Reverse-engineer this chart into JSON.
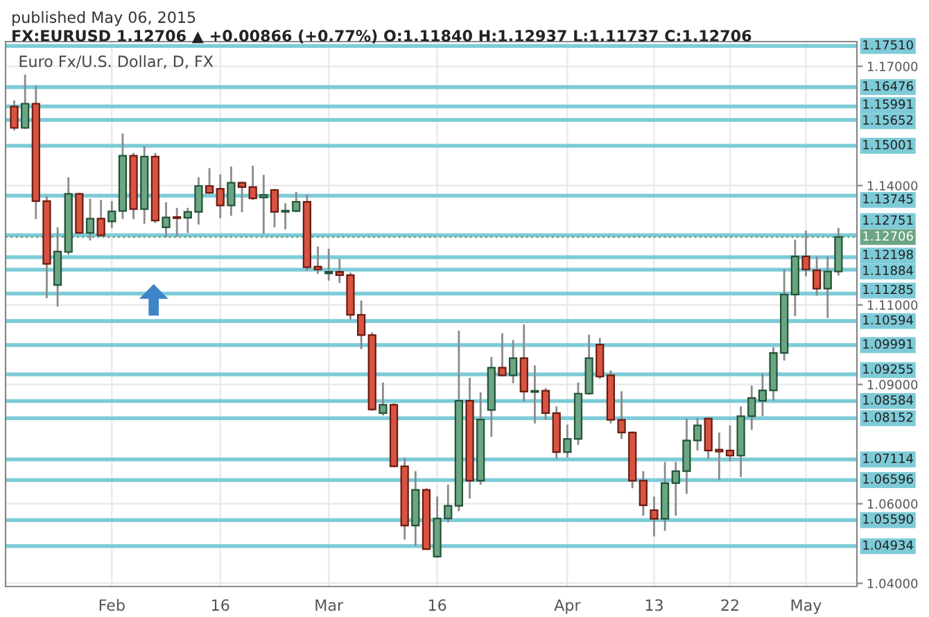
{
  "chart_data": {
    "type": "candlestick",
    "title": "FX:EURUSD 1.12706 ▲ +0.00866 (+0.77%) O:1.11840 H:1.12937 L:1.11737 C:1.12706",
    "subtitle": "published May 06, 2015",
    "annotations": [
      "Euro Fx/U.S. Dollar, D, FX"
    ],
    "categories": [
      null,
      null,
      null,
      null,
      null,
      null,
      null,
      null,
      null,
      "Feb",
      null,
      null,
      null,
      null,
      null,
      null,
      null,
      null,
      null,
      "16",
      null,
      null,
      null,
      null,
      null,
      null,
      null,
      null,
      null,
      "Mar",
      null,
      null,
      null,
      null,
      null,
      null,
      null,
      null,
      null,
      "16",
      null,
      null,
      null,
      null,
      null,
      null,
      null,
      null,
      null,
      null,
      null,
      "Apr",
      null,
      null,
      null,
      null,
      null,
      null,
      null,
      "13",
      null,
      null,
      null,
      null,
      null,
      null,
      "22",
      null,
      null,
      null,
      null,
      null,
      null,
      "May",
      null,
      null,
      null
    ],
    "ohlc": [
      [
        1.1599,
        1.1614,
        1.1539,
        1.1545
      ],
      [
        1.1545,
        1.1679,
        1.1542,
        1.1606
      ],
      [
        1.1606,
        1.1651,
        1.1316,
        1.1361
      ],
      [
        1.1361,
        1.1373,
        1.1117,
        1.1203
      ],
      [
        1.115,
        1.1295,
        1.1096,
        1.1234
      ],
      [
        1.1233,
        1.1421,
        1.1226,
        1.1379
      ],
      [
        1.1379,
        1.1382,
        1.1279,
        1.1281
      ],
      [
        1.1281,
        1.1367,
        1.1262,
        1.1317
      ],
      [
        1.1317,
        1.1364,
        1.1272,
        1.1275
      ],
      [
        1.131,
        1.1361,
        1.1293,
        1.1335
      ],
      [
        1.1336,
        1.1531,
        1.1316,
        1.1475
      ],
      [
        1.1475,
        1.1482,
        1.1316,
        1.1341
      ],
      [
        1.1341,
        1.1499,
        1.1304,
        1.1473
      ],
      [
        1.1473,
        1.1482,
        1.1306,
        1.1312
      ],
      [
        1.1295,
        1.1358,
        1.127,
        1.132
      ],
      [
        1.1321,
        1.1344,
        1.1272,
        1.1318
      ],
      [
        1.1319,
        1.1344,
        1.1281,
        1.1334
      ],
      [
        1.1334,
        1.1421,
        1.1302,
        1.1399
      ],
      [
        1.1399,
        1.1444,
        1.1379,
        1.1382
      ],
      [
        1.1392,
        1.1428,
        1.1318,
        1.135
      ],
      [
        1.135,
        1.1448,
        1.1324,
        1.1407
      ],
      [
        1.1407,
        1.141,
        1.1333,
        1.1396
      ],
      [
        1.1396,
        1.145,
        1.1364,
        1.1368
      ],
      [
        1.137,
        1.1427,
        1.1279,
        1.1376
      ],
      [
        1.1389,
        1.1392,
        1.1295,
        1.1334
      ],
      [
        1.1334,
        1.1356,
        1.129,
        1.1337
      ],
      [
        1.1336,
        1.1384,
        1.1333,
        1.1359
      ],
      [
        1.1359,
        1.1378,
        1.1186,
        1.1195
      ],
      [
        1.1196,
        1.1247,
        1.1178,
        1.1189
      ],
      [
        1.1179,
        1.1241,
        1.1161,
        1.1183
      ],
      [
        1.1183,
        1.1216,
        1.1155,
        1.1175
      ],
      [
        1.1175,
        1.1181,
        1.1063,
        1.1075
      ],
      [
        1.1075,
        1.1111,
        1.0989,
        1.1024
      ],
      [
        1.1024,
        1.1031,
        1.0834,
        1.0837
      ],
      [
        1.0828,
        1.0905,
        1.0822,
        1.0849
      ],
      [
        1.0849,
        1.0853,
        1.0692,
        1.0694
      ],
      [
        1.0694,
        1.0716,
        1.051,
        1.0545
      ],
      [
        1.0545,
        1.0682,
        1.0494,
        1.0635
      ],
      [
        1.0635,
        1.0639,
        1.0484,
        1.0486
      ],
      [
        1.0467,
        1.0618,
        1.0464,
        1.0563
      ],
      [
        1.0563,
        1.0648,
        1.0553,
        1.0595
      ],
      [
        1.0595,
        1.1035,
        1.0581,
        1.0859
      ],
      [
        1.0859,
        1.0917,
        1.0613,
        1.0658
      ],
      [
        1.0658,
        1.088,
        1.0648,
        1.0812
      ],
      [
        1.0836,
        1.0969,
        1.0768,
        1.0942
      ],
      [
        1.0942,
        1.1029,
        1.092,
        1.0923
      ],
      [
        1.0923,
        1.1012,
        1.0903,
        1.0966
      ],
      [
        1.0966,
        1.1051,
        1.0857,
        1.0882
      ],
      [
        1.0881,
        1.0948,
        1.0802,
        1.0884
      ],
      [
        1.0884,
        1.0891,
        1.0811,
        1.0828
      ],
      [
        1.0828,
        1.0845,
        1.0713,
        1.073
      ],
      [
        1.073,
        1.0799,
        1.0716,
        1.0763
      ],
      [
        1.0763,
        1.0905,
        1.0748,
        1.0877
      ],
      [
        1.0877,
        1.1025,
        1.0874,
        1.0966
      ],
      [
        1.1,
        1.1017,
        1.0914,
        1.092
      ],
      [
        1.0923,
        1.0935,
        1.0802,
        1.0811
      ],
      [
        1.0811,
        1.0883,
        1.0763,
        1.0779
      ],
      [
        1.0779,
        1.0782,
        1.0639,
        1.0658
      ],
      [
        1.0658,
        1.0682,
        1.057,
        1.0596
      ],
      [
        1.0584,
        1.0618,
        1.0518,
        1.0562
      ],
      [
        1.0562,
        1.0705,
        1.0532,
        1.0652
      ],
      [
        1.0652,
        1.0705,
        1.057,
        1.0682
      ],
      [
        1.0682,
        1.0814,
        1.0625,
        1.0759
      ],
      [
        1.0759,
        1.0816,
        1.0734,
        1.0797
      ],
      [
        1.0814,
        1.0816,
        1.0713,
        1.0734
      ],
      [
        1.0736,
        1.0779,
        1.0659,
        1.0731
      ],
      [
        1.0734,
        1.0797,
        1.0707,
        1.0721
      ],
      [
        1.0721,
        1.0845,
        1.0667,
        1.082
      ],
      [
        1.082,
        1.0897,
        1.0786,
        1.0866
      ],
      [
        1.0859,
        1.0928,
        1.082,
        1.0885
      ],
      [
        1.0885,
        1.0994,
        1.0859,
        1.0979
      ],
      [
        1.0979,
        1.1189,
        1.096,
        1.1126
      ],
      [
        1.1126,
        1.1264,
        1.1072,
        1.1222
      ],
      [
        1.1222,
        1.1287,
        1.1172,
        1.1189
      ],
      [
        1.1187,
        1.1222,
        1.1123,
        1.1141
      ],
      [
        1.1141,
        1.1222,
        1.1067,
        1.1184
      ],
      [
        1.1184,
        1.12937,
        1.11737,
        1.12706
      ]
    ],
    "ylim": [
      1.0392,
      1.1762
    ],
    "yticks": [
      {
        "value": 1.17,
        "label": "1.17000"
      },
      {
        "value": 1.14,
        "label": "1.14000"
      },
      {
        "value": 1.11,
        "label": "1.11000"
      },
      {
        "value": 1.09,
        "label": "1.09000"
      },
      {
        "value": 1.06,
        "label": "1.06000"
      },
      {
        "value": 1.04,
        "label": "1.04000"
      }
    ],
    "ref_lines": [
      {
        "axis": "y",
        "value": 1.1751,
        "label": "1.17510",
        "color": "#7ecbd8"
      },
      {
        "axis": "y",
        "value": 1.16476,
        "label": "1.16476",
        "color": "#7ecbd8"
      },
      {
        "axis": "y",
        "value": 1.15991,
        "label": "1.15991",
        "color": "#7ecbd8"
      },
      {
        "axis": "y",
        "value": 1.15652,
        "label": "1.15652",
        "color": "#7ecbd8"
      },
      {
        "axis": "y",
        "value": 1.15001,
        "label": "1.15001",
        "color": "#7ecbd8"
      },
      {
        "axis": "y",
        "value": 1.13745,
        "label": "1.13745",
        "color": "#7ecbd8"
      },
      {
        "axis": "y",
        "value": 1.12751,
        "label": "1.12751",
        "color": "#7ecbd8"
      },
      {
        "axis": "y",
        "value": 1.12706,
        "label": "1.12706",
        "color": "#6ba583",
        "line_style": "dotted"
      },
      {
        "axis": "y",
        "value": 1.12198,
        "label": "1.12198",
        "color": "#7ecbd8"
      },
      {
        "axis": "y",
        "value": 1.11884,
        "label": "1.11884",
        "color": "#7ecbd8"
      },
      {
        "axis": "y",
        "value": 1.11285,
        "label": "1.11285",
        "color": "#7ecbd8"
      },
      {
        "axis": "y",
        "value": 1.10594,
        "label": "1.10594",
        "color": "#7ecbd8"
      },
      {
        "axis": "y",
        "value": 1.09991,
        "label": "1.09991",
        "color": "#7ecbd8"
      },
      {
        "axis": "y",
        "value": 1.09255,
        "label": "1.09255",
        "color": "#7ecbd8"
      },
      {
        "axis": "y",
        "value": 1.08584,
        "label": "1.08584",
        "color": "#7ecbd8"
      },
      {
        "axis": "y",
        "value": 1.08152,
        "label": "1.08152",
        "color": "#7ecbd8"
      },
      {
        "axis": "y",
        "value": 1.07114,
        "label": "1.07114",
        "color": "#7ecbd8"
      },
      {
        "axis": "y",
        "value": 1.06596,
        "label": "1.06596",
        "color": "#7ecbd8"
      },
      {
        "axis": "y",
        "value": 1.0559,
        "label": "1.05590",
        "color": "#7ecbd8"
      },
      {
        "axis": "y",
        "value": 1.04934,
        "label": "1.04934",
        "color": "#7ecbd8"
      }
    ],
    "grid": true
  }
}
